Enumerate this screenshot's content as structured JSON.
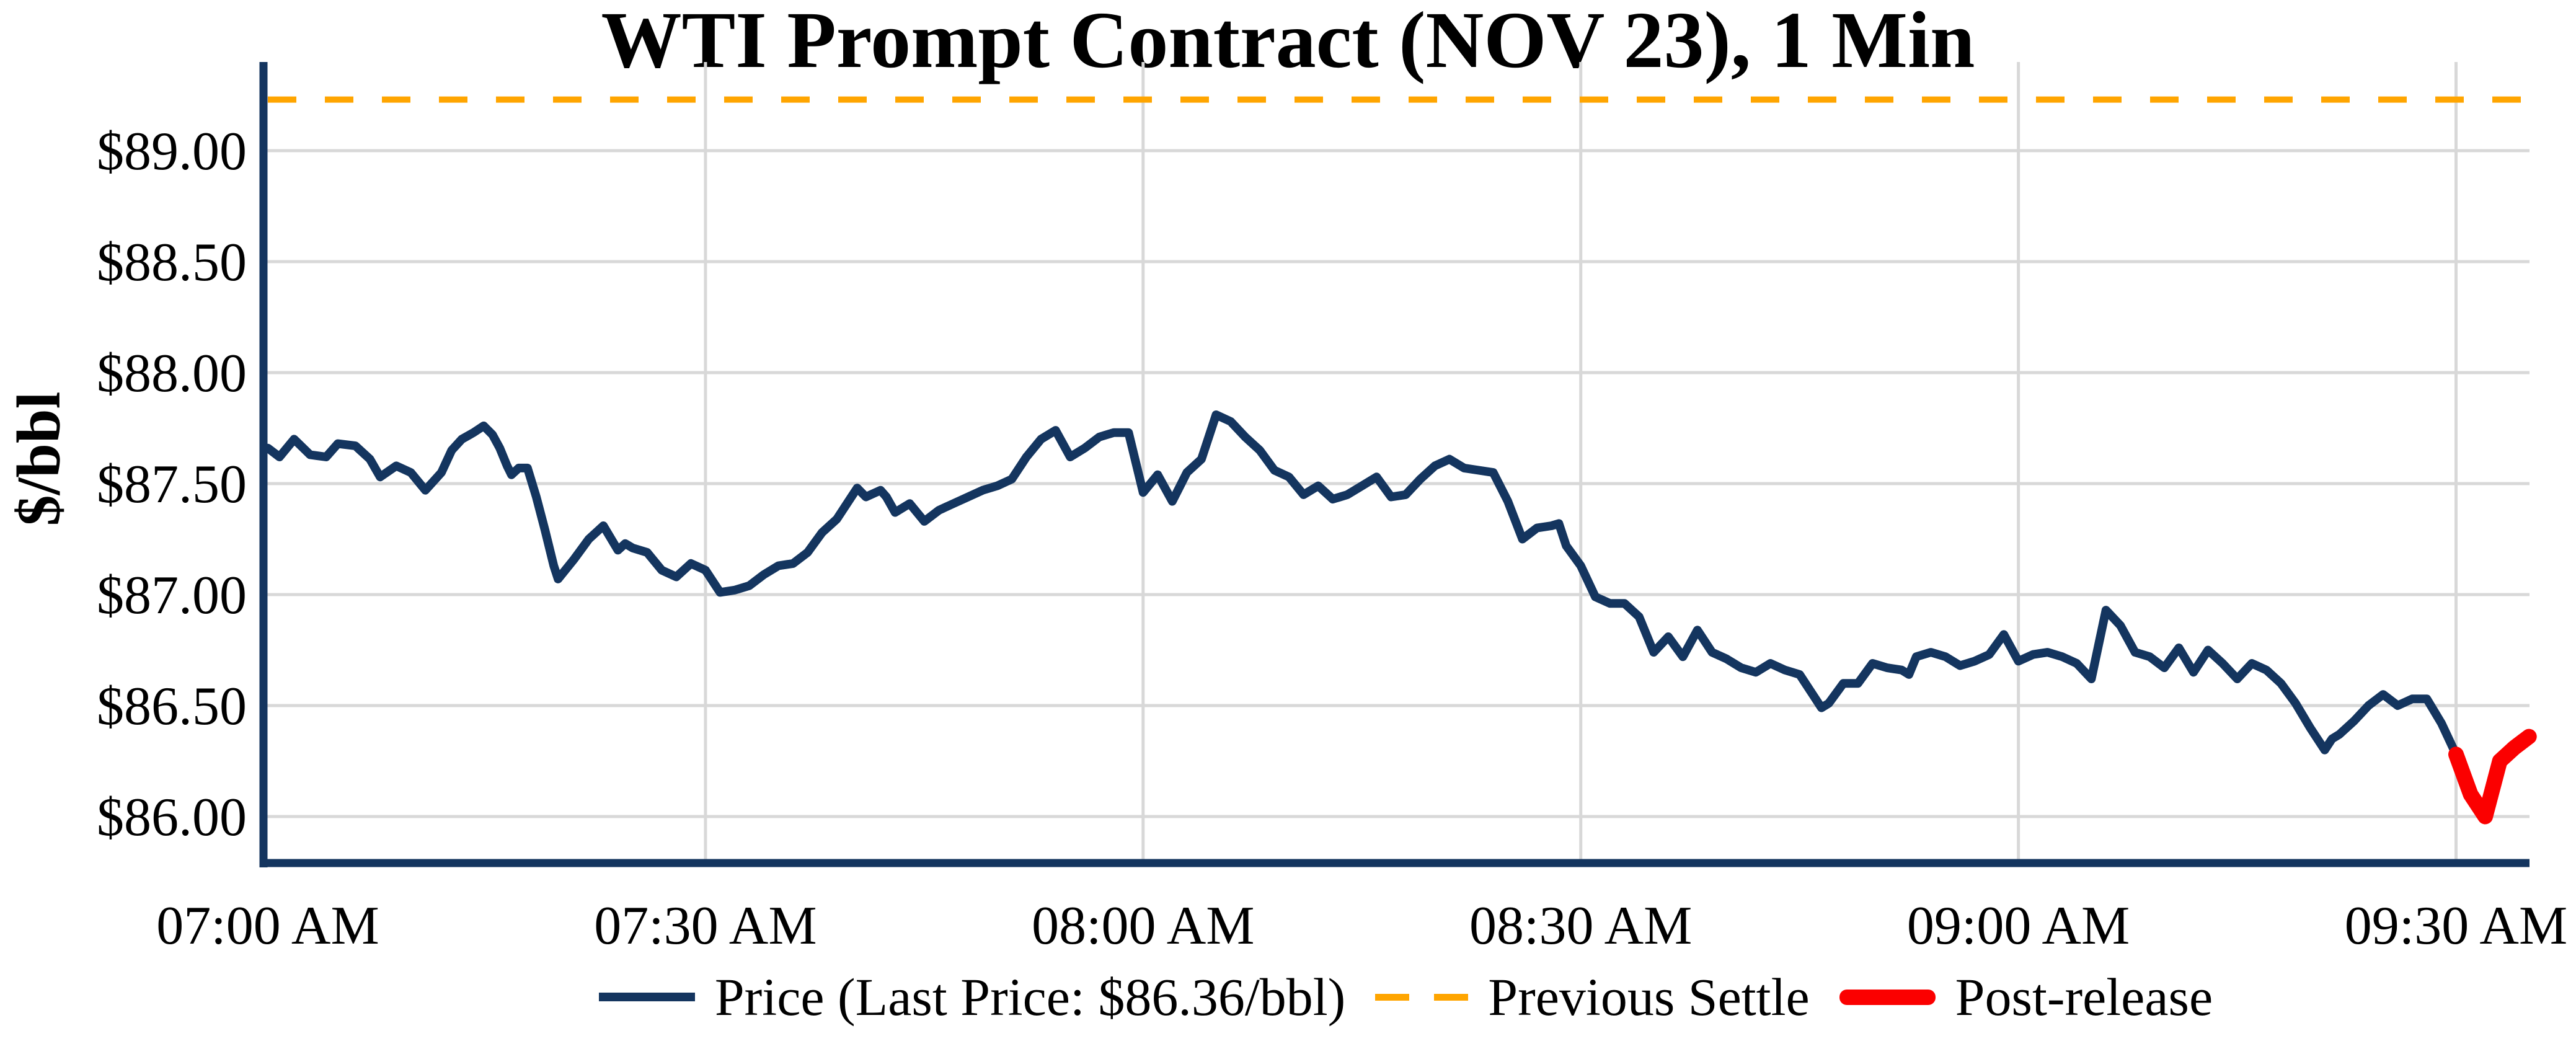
{
  "chart": {
    "title": "WTI Prompt Contract (NOV 23), 1 Min",
    "ylabel": "$/bbl",
    "colors": {
      "price": "#14355f",
      "previous_settle": "#ffa500",
      "post_release": "#fb0000",
      "grid": "#d8d8d8",
      "axis": "#14355f",
      "text": "#000000"
    },
    "y_ticks": [
      {
        "label": "$89.00",
        "value": 89.0
      },
      {
        "label": "$88.50",
        "value": 88.5
      },
      {
        "label": "$88.00",
        "value": 88.0
      },
      {
        "label": "$87.50",
        "value": 87.5
      },
      {
        "label": "$87.00",
        "value": 87.0
      },
      {
        "label": "$86.50",
        "value": 86.5
      },
      {
        "label": "$86.00",
        "value": 86.0
      }
    ],
    "x_ticks": [
      {
        "label": "07:00 AM",
        "minutes": 0
      },
      {
        "label": "07:30 AM",
        "minutes": 30
      },
      {
        "label": "08:00 AM",
        "minutes": 60
      },
      {
        "label": "08:30 AM",
        "minutes": 90
      },
      {
        "label": "09:00 AM",
        "minutes": 120
      },
      {
        "label": "09:30 AM",
        "minutes": 150
      }
    ],
    "legend": [
      {
        "label": "Price (Last Price: $86.36/bbl)",
        "style": "solid",
        "color": "#14355f"
      },
      {
        "label": "Previous Settle",
        "style": "dashed",
        "color": "#ffa500"
      },
      {
        "label": "Post-release",
        "style": "thick",
        "color": "#fb0000"
      }
    ],
    "last_price": "$86.36/bbl",
    "previous_settle_value": 89.23
  },
  "chart_data": {
    "type": "line",
    "title": "WTI Prompt Contract (NOV 23), 1 Min",
    "xlabel": "",
    "ylabel": "$/bbl",
    "x_unit": "minutes after 07:00 AM",
    "x_tick_labels": [
      "07:00 AM",
      "07:30 AM",
      "08:00 AM",
      "08:30 AM",
      "09:00 AM",
      "09:30 AM"
    ],
    "y_tick_values": [
      89.0,
      88.5,
      88.0,
      87.5,
      87.0,
      86.5,
      86.0
    ],
    "ylim": [
      85.79,
      89.4
    ],
    "xlim_minutes": [
      0,
      155.2
    ],
    "grid": true,
    "legend_position": "bottom-center",
    "previous_settle": 89.23,
    "last_price": 86.36,
    "series": [
      {
        "name": "Price",
        "color": "#14355f",
        "points": [
          [
            0,
            87.66
          ],
          [
            0.8,
            87.62
          ],
          [
            1.8,
            87.7
          ],
          [
            2.9,
            87.63
          ],
          [
            4,
            87.62
          ],
          [
            4.8,
            87.68
          ],
          [
            6,
            87.67
          ],
          [
            7,
            87.61
          ],
          [
            7.7,
            87.53
          ],
          [
            8.8,
            87.58
          ],
          [
            9.8,
            87.55
          ],
          [
            10.8,
            87.47
          ],
          [
            11.9,
            87.55
          ],
          [
            12.6,
            87.65
          ],
          [
            13.3,
            87.7
          ],
          [
            14.1,
            87.73
          ],
          [
            14.8,
            87.76
          ],
          [
            15.4,
            87.72
          ],
          [
            15.9,
            87.66
          ],
          [
            16.4,
            87.58
          ],
          [
            16.7,
            87.54
          ],
          [
            17.2,
            87.57
          ],
          [
            17.8,
            87.57
          ],
          [
            18.4,
            87.44
          ],
          [
            19,
            87.29
          ],
          [
            19.6,
            87.13
          ],
          [
            19.9,
            87.07
          ],
          [
            21,
            87.16
          ],
          [
            22,
            87.25
          ],
          [
            23,
            87.31
          ],
          [
            24,
            87.2
          ],
          [
            24.5,
            87.23
          ],
          [
            25,
            87.21
          ],
          [
            26,
            87.19
          ],
          [
            27,
            87.11
          ],
          [
            28,
            87.08
          ],
          [
            29,
            87.14
          ],
          [
            30,
            87.11
          ],
          [
            31,
            87.01
          ],
          [
            32,
            87.02
          ],
          [
            33,
            87.04
          ],
          [
            34,
            87.09
          ],
          [
            35,
            87.13
          ],
          [
            36,
            87.14
          ],
          [
            37,
            87.19
          ],
          [
            38,
            87.28
          ],
          [
            39,
            87.34
          ],
          [
            40,
            87.44
          ],
          [
            40.4,
            87.48
          ],
          [
            41,
            87.44
          ],
          [
            42,
            87.47
          ],
          [
            42.4,
            87.44
          ],
          [
            43,
            87.37
          ],
          [
            44,
            87.41
          ],
          [
            45,
            87.33
          ],
          [
            46,
            87.38
          ],
          [
            47,
            87.41
          ],
          [
            48,
            87.44
          ],
          [
            49,
            87.47
          ],
          [
            50,
            87.49
          ],
          [
            51,
            87.52
          ],
          [
            52,
            87.62
          ],
          [
            53,
            87.7
          ],
          [
            54,
            87.74
          ],
          [
            55,
            87.62
          ],
          [
            56,
            87.66
          ],
          [
            57,
            87.71
          ],
          [
            58,
            87.73
          ],
          [
            59,
            87.73
          ],
          [
            60,
            87.46
          ],
          [
            61,
            87.54
          ],
          [
            62,
            87.42
          ],
          [
            63,
            87.55
          ],
          [
            64,
            87.61
          ],
          [
            65,
            87.81
          ],
          [
            66,
            87.78
          ],
          [
            67,
            87.71
          ],
          [
            68,
            87.65
          ],
          [
            69,
            87.56
          ],
          [
            70,
            87.53
          ],
          [
            71,
            87.45
          ],
          [
            72,
            87.49
          ],
          [
            73,
            87.43
          ],
          [
            74,
            87.45
          ],
          [
            75,
            87.49
          ],
          [
            76,
            87.53
          ],
          [
            77,
            87.44
          ],
          [
            78,
            87.45
          ],
          [
            79,
            87.52
          ],
          [
            80,
            87.58
          ],
          [
            81,
            87.61
          ],
          [
            82,
            87.57
          ],
          [
            83,
            87.56
          ],
          [
            84,
            87.55
          ],
          [
            85,
            87.42
          ],
          [
            86,
            87.25
          ],
          [
            87,
            87.3
          ],
          [
            88,
            87.31
          ],
          [
            88.5,
            87.32
          ],
          [
            89,
            87.22
          ],
          [
            90,
            87.13
          ],
          [
            91,
            86.99
          ],
          [
            92,
            86.96
          ],
          [
            93,
            86.96
          ],
          [
            94,
            86.9
          ],
          [
            95,
            86.74
          ],
          [
            96,
            86.81
          ],
          [
            97,
            86.72
          ],
          [
            98,
            86.84
          ],
          [
            99,
            86.74
          ],
          [
            100,
            86.71
          ],
          [
            101,
            86.67
          ],
          [
            102,
            86.65
          ],
          [
            103,
            86.69
          ],
          [
            104,
            86.66
          ],
          [
            105,
            86.64
          ],
          [
            106,
            86.54
          ],
          [
            106.5,
            86.49
          ],
          [
            107,
            86.51
          ],
          [
            108,
            86.6
          ],
          [
            109,
            86.6
          ],
          [
            110,
            86.69
          ],
          [
            111,
            86.67
          ],
          [
            112,
            86.66
          ],
          [
            112.5,
            86.64
          ],
          [
            113,
            86.72
          ],
          [
            114,
            86.74
          ],
          [
            115,
            86.72
          ],
          [
            116,
            86.68
          ],
          [
            117,
            86.7
          ],
          [
            118,
            86.73
          ],
          [
            119,
            86.82
          ],
          [
            120,
            86.7
          ],
          [
            121,
            86.73
          ],
          [
            122,
            86.74
          ],
          [
            123,
            86.72
          ],
          [
            124,
            86.69
          ],
          [
            125,
            86.62
          ],
          [
            126,
            86.93
          ],
          [
            127,
            86.86
          ],
          [
            128,
            86.74
          ],
          [
            129,
            86.72
          ],
          [
            130,
            86.67
          ],
          [
            131,
            86.76
          ],
          [
            132,
            86.65
          ],
          [
            133,
            86.75
          ],
          [
            134,
            86.69
          ],
          [
            135,
            86.62
          ],
          [
            136,
            86.69
          ],
          [
            137,
            86.66
          ],
          [
            138,
            86.6
          ],
          [
            139,
            86.51
          ],
          [
            140,
            86.4
          ],
          [
            141,
            86.3
          ],
          [
            141.5,
            86.35
          ],
          [
            142,
            86.37
          ],
          [
            143,
            86.43
          ],
          [
            144,
            86.5
          ],
          [
            145,
            86.55
          ],
          [
            146,
            86.5
          ],
          [
            147,
            86.53
          ],
          [
            148,
            86.53
          ],
          [
            149,
            86.42
          ],
          [
            150,
            86.28
          ]
        ]
      },
      {
        "name": "Post-release",
        "color": "#fb0000",
        "points": [
          [
            150,
            86.28
          ],
          [
            151,
            86.1
          ],
          [
            152,
            86.0
          ],
          [
            153,
            86.25
          ],
          [
            154,
            86.31
          ],
          [
            155,
            86.36
          ]
        ]
      }
    ]
  }
}
